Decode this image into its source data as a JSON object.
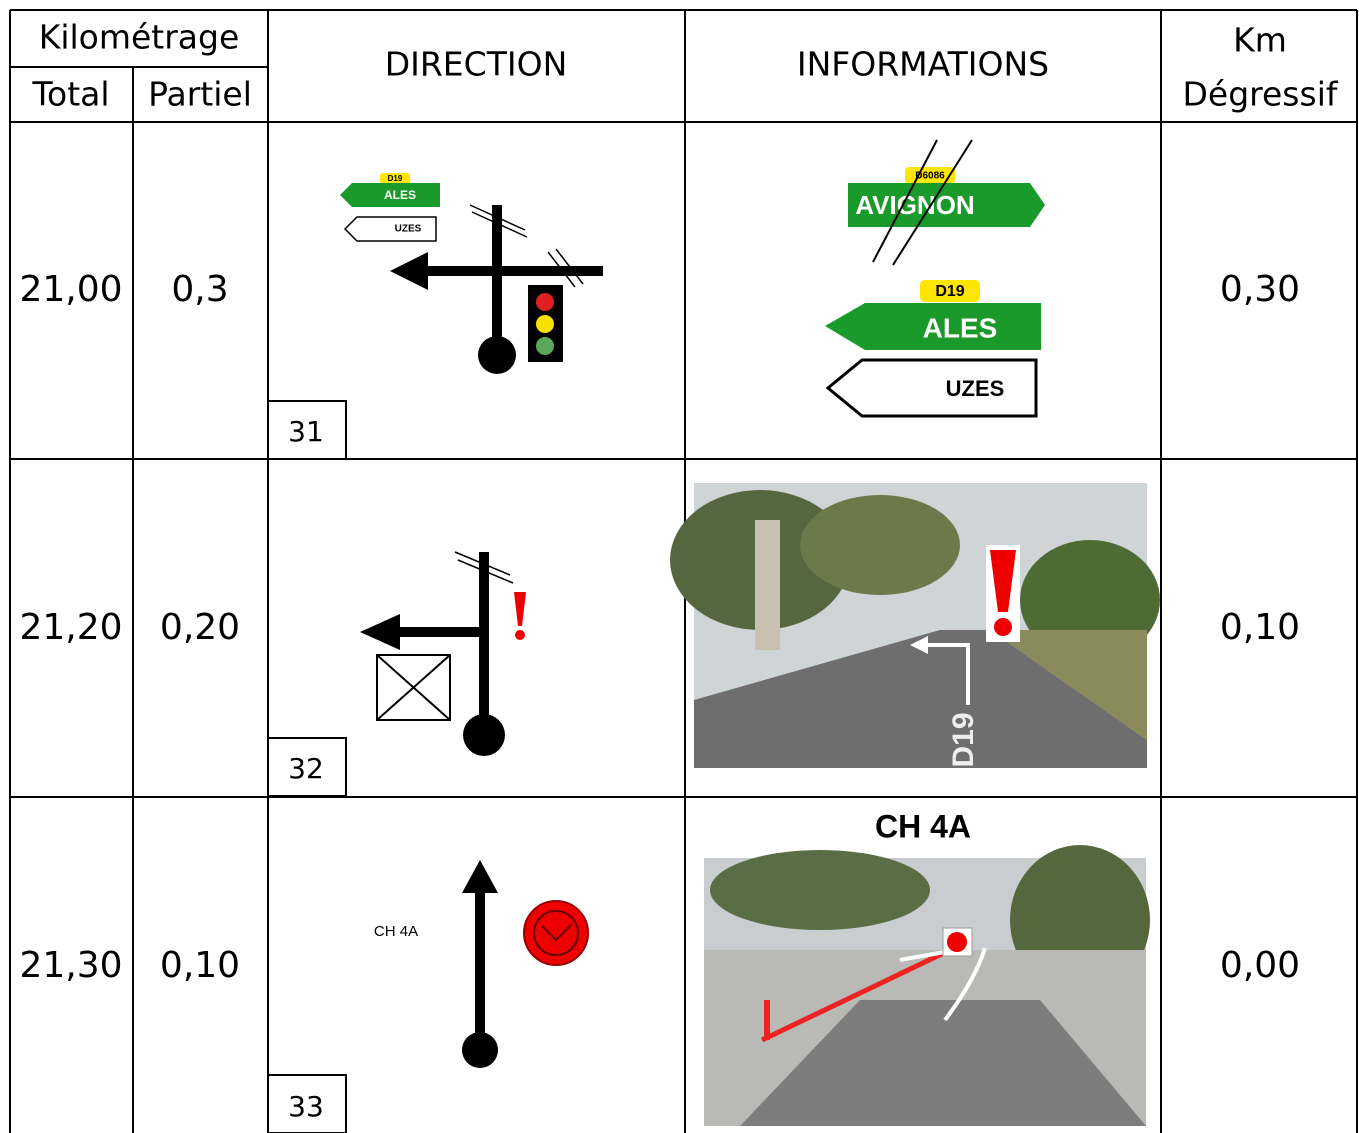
{
  "header": {
    "kilometrage": "Kilométrage",
    "total": "Total",
    "partiel": "Partiel",
    "direction": "DIRECTION",
    "informations": "INFORMATIONS",
    "km": "Km",
    "degressif": "Dégressif"
  },
  "rows": [
    {
      "total": "21,00",
      "partiel": "0,3",
      "box": "31",
      "degressif": "0,30",
      "direction": {
        "signs": [
          "D19",
          "ALES",
          "UZES"
        ]
      },
      "info": {
        "crossed_road": "D6086",
        "crossed_sign": "AVIGNON",
        "road": "D19",
        "signs": [
          "ALES",
          "UZES"
        ]
      }
    },
    {
      "total": "21,20",
      "partiel": "0,20",
      "box": "32",
      "degressif": "0,10",
      "info": {
        "road_marking": "D19"
      }
    },
    {
      "total": "21,30",
      "partiel": "0,10",
      "box": "33",
      "degressif": "0,00",
      "direction": {
        "label": "CH 4A"
      },
      "info": {
        "title": "CH 4A"
      }
    }
  ]
}
